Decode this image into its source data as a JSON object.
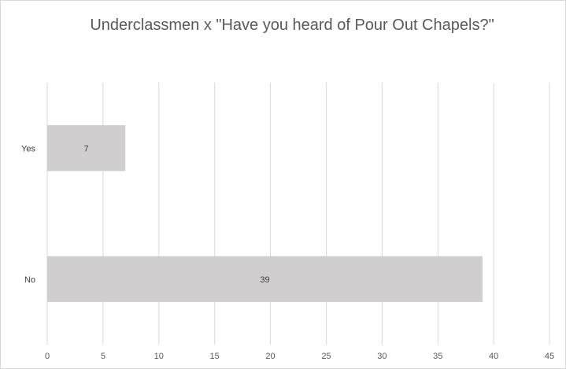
{
  "chart_data": {
    "type": "bar",
    "orientation": "horizontal",
    "title": "Underclassmen x \"Have you heard of Pour Out Chapels?\"",
    "categories": [
      "Yes",
      "No"
    ],
    "values": [
      7,
      39
    ],
    "data_labels": [
      "7",
      "39"
    ],
    "xlim": [
      0,
      45
    ],
    "xticks": [
      0,
      5,
      10,
      15,
      20,
      25,
      30,
      35,
      40,
      45
    ],
    "grid": "vertical",
    "legend": "none",
    "colors": {
      "bar": "#d0cece",
      "grid": "#d9d9d9",
      "text": "#595959"
    }
  }
}
